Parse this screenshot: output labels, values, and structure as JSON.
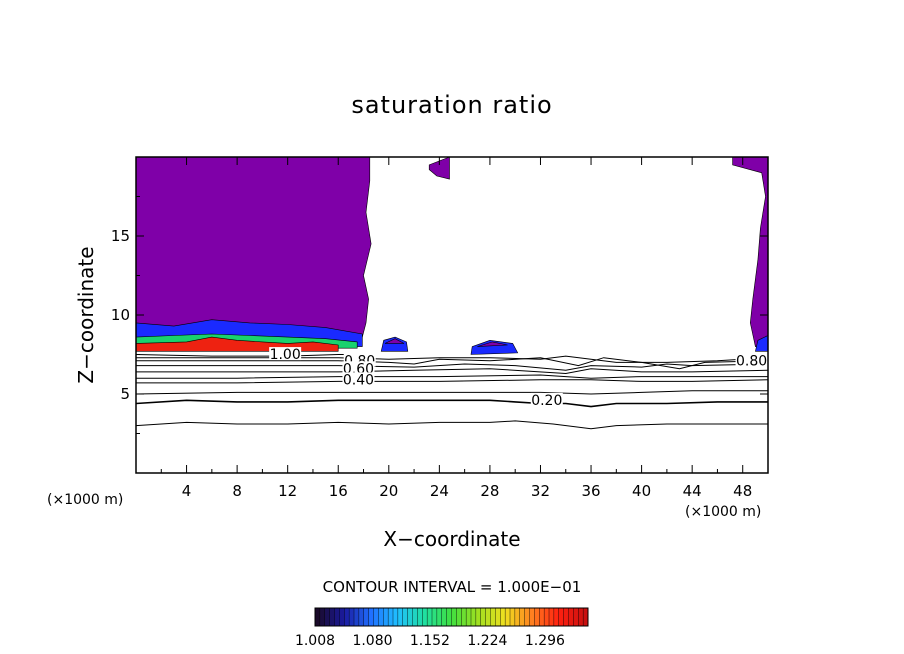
{
  "chart_data": {
    "type": "contour",
    "title": "saturation ratio",
    "xlabel": "X−coordinate",
    "ylabel": "Z−coordinate",
    "x_unit_left": "(×1000 m)",
    "x_unit_right": "(×1000 m)",
    "xlim": [
      0,
      50
    ],
    "ylim": [
      0,
      20
    ],
    "xticks": [
      "4",
      "8",
      "12",
      "16",
      "20",
      "24",
      "28",
      "32",
      "36",
      "40",
      "44",
      "48"
    ],
    "xtick_values": [
      4,
      8,
      12,
      16,
      20,
      24,
      28,
      32,
      36,
      40,
      44,
      48
    ],
    "yticks": [
      "5",
      "10",
      "15"
    ],
    "ytick_values": [
      5,
      10,
      15
    ],
    "contour_labels": [
      {
        "text": "1.00",
        "x": 11.8,
        "z": 7.4
      },
      {
        "text": "0.80",
        "x": 17.7,
        "z": 7.0
      },
      {
        "text": "0.60",
        "x": 17.6,
        "z": 6.5
      },
      {
        "text": "0.40",
        "x": 17.6,
        "z": 5.8
      },
      {
        "text": "0.20",
        "x": 32.5,
        "z": 4.5
      },
      {
        "text": "0.80",
        "x": 48.7,
        "z": 7.0
      }
    ],
    "contour_lines": [
      {
        "level": 0.1,
        "points": [
          [
            0,
            3.0
          ],
          [
            4,
            3.2
          ],
          [
            8,
            3.1
          ],
          [
            12,
            3.1
          ],
          [
            16,
            3.2
          ],
          [
            20,
            3.1
          ],
          [
            24,
            3.2
          ],
          [
            28,
            3.2
          ],
          [
            30,
            3.3
          ],
          [
            33,
            3.1
          ],
          [
            36,
            2.8
          ],
          [
            38,
            3.0
          ],
          [
            42,
            3.1
          ],
          [
            46,
            3.1
          ],
          [
            50,
            3.1
          ]
        ]
      },
      {
        "level": 0.2,
        "points": [
          [
            0,
            4.4
          ],
          [
            4,
            4.6
          ],
          [
            8,
            4.5
          ],
          [
            12,
            4.5
          ],
          [
            16,
            4.6
          ],
          [
            20,
            4.6
          ],
          [
            24,
            4.6
          ],
          [
            28,
            4.6
          ],
          [
            30,
            4.5
          ],
          [
            32,
            4.4
          ],
          [
            34,
            4.4
          ],
          [
            36,
            4.2
          ],
          [
            38,
            4.4
          ],
          [
            42,
            4.4
          ],
          [
            46,
            4.5
          ],
          [
            50,
            4.5
          ]
        ]
      },
      {
        "level": 0.3,
        "points": [
          [
            0,
            5.0
          ],
          [
            8,
            5.1
          ],
          [
            16,
            5.1
          ],
          [
            24,
            5.1
          ],
          [
            32,
            5.1
          ],
          [
            36,
            5.0
          ],
          [
            40,
            5.1
          ],
          [
            44,
            5.2
          ],
          [
            50,
            5.2
          ]
        ]
      },
      {
        "level": 0.4,
        "points": [
          [
            0,
            5.7
          ],
          [
            8,
            5.7
          ],
          [
            16,
            5.8
          ],
          [
            24,
            5.8
          ],
          [
            32,
            5.9
          ],
          [
            36,
            5.9
          ],
          [
            40,
            5.8
          ],
          [
            44,
            5.8
          ],
          [
            50,
            5.9
          ]
        ]
      },
      {
        "level": 0.5,
        "points": [
          [
            0,
            6.0
          ],
          [
            8,
            6.0
          ],
          [
            16,
            6.1
          ],
          [
            24,
            6.1
          ],
          [
            32,
            6.2
          ],
          [
            36,
            6.0
          ],
          [
            40,
            6.1
          ],
          [
            44,
            6.1
          ],
          [
            50,
            6.1
          ]
        ]
      },
      {
        "level": 0.6,
        "points": [
          [
            0,
            6.4
          ],
          [
            8,
            6.4
          ],
          [
            16,
            6.4
          ],
          [
            22,
            6.5
          ],
          [
            28,
            6.6
          ],
          [
            34,
            6.3
          ],
          [
            36,
            6.6
          ],
          [
            40,
            6.4
          ],
          [
            44,
            6.4
          ],
          [
            50,
            6.5
          ]
        ]
      },
      {
        "level": 0.7,
        "points": [
          [
            0,
            6.8
          ],
          [
            8,
            6.8
          ],
          [
            16,
            6.8
          ],
          [
            22,
            6.7
          ],
          [
            26,
            6.9
          ],
          [
            30,
            6.8
          ],
          [
            34,
            6.5
          ],
          [
            36,
            6.8
          ],
          [
            40,
            6.7
          ],
          [
            42,
            6.9
          ],
          [
            44,
            6.8
          ],
          [
            50,
            6.9
          ]
        ]
      },
      {
        "level": 0.8,
        "points": [
          [
            0,
            7.1
          ],
          [
            8,
            7.1
          ],
          [
            16,
            7.1
          ],
          [
            20,
            7.0
          ],
          [
            22,
            6.9
          ],
          [
            24,
            7.2
          ],
          [
            28,
            7.1
          ],
          [
            32,
            7.3
          ],
          [
            35,
            6.8
          ],
          [
            37,
            7.3
          ],
          [
            40,
            7.0
          ],
          [
            43,
            6.6
          ],
          [
            45,
            7.0
          ],
          [
            50,
            7.1
          ]
        ]
      },
      {
        "level": 0.9,
        "points": [
          [
            0,
            7.3
          ],
          [
            8,
            7.3
          ],
          [
            16,
            7.3
          ],
          [
            20,
            7.2
          ],
          [
            24,
            7.3
          ],
          [
            28,
            7.3
          ],
          [
            32,
            7.2
          ],
          [
            34,
            7.4
          ],
          [
            36,
            7.2
          ],
          [
            38,
            7.0
          ],
          [
            42,
            7.0
          ],
          [
            46,
            7.1
          ],
          [
            50,
            7.3
          ]
        ]
      },
      {
        "level": 1.0,
        "points": [
          [
            0,
            7.5
          ],
          [
            6,
            7.4
          ],
          [
            12,
            7.4
          ],
          [
            16,
            7.5
          ],
          [
            17,
            7.5
          ]
        ]
      }
    ],
    "filled_regions": [
      {
        "name": "purple-left",
        "color": "#7f00a8",
        "points": [
          [
            0,
            20
          ],
          [
            18.5,
            20
          ],
          [
            18.5,
            18.5
          ],
          [
            18.2,
            16.5
          ],
          [
            18.6,
            14.5
          ],
          [
            18.0,
            12.5
          ],
          [
            18.4,
            11
          ],
          [
            18.2,
            9.5
          ],
          [
            17.9,
            8.6
          ],
          [
            16.8,
            8.2
          ],
          [
            0,
            8.2
          ]
        ]
      },
      {
        "name": "purple-right",
        "color": "#7f00a8",
        "points": [
          [
            47.2,
            20
          ],
          [
            50,
            20
          ],
          [
            50,
            8.2
          ],
          [
            49.0,
            8.0
          ],
          [
            48.6,
            9.5
          ],
          [
            48.8,
            11
          ],
          [
            49.2,
            13.5
          ],
          [
            49.4,
            15.5
          ],
          [
            49.8,
            17.5
          ],
          [
            49.5,
            19.0
          ],
          [
            47.2,
            19.5
          ]
        ]
      },
      {
        "name": "purple-top-blob",
        "color": "#7f00a8",
        "points": [
          [
            23.2,
            19.5
          ],
          [
            24.8,
            20
          ],
          [
            24.8,
            18.6
          ],
          [
            23.8,
            18.8
          ],
          [
            23.2,
            19.2
          ]
        ]
      },
      {
        "name": "blue-band-left",
        "color": "#1a2aff",
        "points": [
          [
            0,
            9.5
          ],
          [
            3,
            9.3
          ],
          [
            6,
            9.7
          ],
          [
            9,
            9.5
          ],
          [
            12,
            9.4
          ],
          [
            15,
            9.2
          ],
          [
            17.9,
            8.8
          ],
          [
            17.9,
            8.0
          ],
          [
            0,
            8.0
          ]
        ]
      },
      {
        "name": "green-band-left",
        "color": "#19d26e",
        "points": [
          [
            0,
            8.6
          ],
          [
            3,
            8.7
          ],
          [
            6,
            8.8
          ],
          [
            9,
            8.7
          ],
          [
            12,
            8.6
          ],
          [
            15,
            8.5
          ],
          [
            17.5,
            8.3
          ],
          [
            17.5,
            7.9
          ],
          [
            0,
            7.9
          ]
        ]
      },
      {
        "name": "red-band-left",
        "color": "#ee2211",
        "points": [
          [
            0,
            8.2
          ],
          [
            4,
            8.3
          ],
          [
            6,
            8.6
          ],
          [
            8,
            8.4
          ],
          [
            10,
            8.3
          ],
          [
            12,
            8.2
          ],
          [
            14,
            8.3
          ],
          [
            16,
            8.1
          ],
          [
            16,
            7.7
          ],
          [
            0,
            7.7
          ]
        ]
      },
      {
        "name": "blue-blob-20",
        "color": "#1a2aff",
        "points": [
          [
            19.4,
            7.7
          ],
          [
            21.5,
            7.7
          ],
          [
            21.4,
            8.3
          ],
          [
            20.5,
            8.6
          ],
          [
            19.6,
            8.4
          ]
        ]
      },
      {
        "name": "purple-blob-20",
        "color": "#7f00a8",
        "points": [
          [
            19.7,
            8.2
          ],
          [
            21.2,
            8.2
          ],
          [
            20.5,
            8.5
          ]
        ]
      },
      {
        "name": "blue-blob-28",
        "color": "#1a2aff",
        "points": [
          [
            26.5,
            7.5
          ],
          [
            30.2,
            7.6
          ],
          [
            29.8,
            8.2
          ],
          [
            28,
            8.4
          ],
          [
            26.6,
            8.0
          ]
        ]
      },
      {
        "name": "purple-blob-28",
        "color": "#7f00a8",
        "points": [
          [
            27.0,
            8.0
          ],
          [
            29.4,
            8.1
          ],
          [
            28.2,
            8.3
          ]
        ]
      },
      {
        "name": "blue-blob-49",
        "color": "#1a2aff",
        "points": [
          [
            49.0,
            7.7
          ],
          [
            50,
            7.7
          ],
          [
            50,
            8.7
          ],
          [
            49.2,
            8.4
          ]
        ]
      }
    ],
    "colorbar": {
      "title": "CONTOUR INTERVAL = 1.000E−01",
      "tick_labels": [
        "1.008",
        "1.080",
        "1.152",
        "1.224",
        "1.296"
      ],
      "tick_values": [
        1.008,
        1.08,
        1.152,
        1.224,
        1.296
      ],
      "range": [
        1.008,
        1.35
      ],
      "colors": [
        "#1a0a2a",
        "#1a1aa0",
        "#2070ff",
        "#20c0ff",
        "#20e0a0",
        "#40e040",
        "#a0e020",
        "#f0e020",
        "#ff8020",
        "#ff2010",
        "#c81010"
      ]
    },
    "colors": {
      "background": "#ffffff",
      "axis": "#000000",
      "fill_main": "#7f00a8"
    },
    "grid": false
  }
}
